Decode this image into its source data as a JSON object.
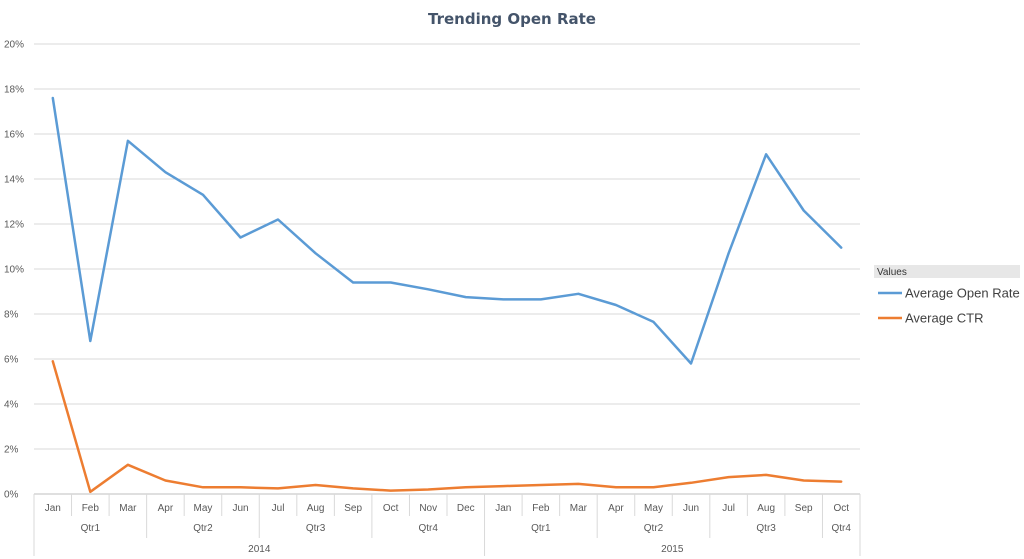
{
  "chart_data": {
    "type": "line",
    "title": "Trending Open Rate",
    "xlabel": "",
    "ylabel": "",
    "ylim": [
      0,
      20
    ],
    "yticks": [
      "0%",
      "2%",
      "4%",
      "6%",
      "8%",
      "10%",
      "12%",
      "14%",
      "16%",
      "18%",
      "20%"
    ],
    "grid": true,
    "legend_position": "right",
    "legend_header": "Values",
    "categories": [
      "Jan",
      "Feb",
      "Mar",
      "Apr",
      "May",
      "Jun",
      "Jul",
      "Aug",
      "Sep",
      "Oct",
      "Nov",
      "Dec",
      "Jan",
      "Feb",
      "Mar",
      "Apr",
      "May",
      "Jun",
      "Jul",
      "Aug",
      "Sep",
      "Oct"
    ],
    "quarters": [
      {
        "label": "Qtr1",
        "start": 0,
        "end": 2
      },
      {
        "label": "Qtr2",
        "start": 3,
        "end": 5
      },
      {
        "label": "Qtr3",
        "start": 6,
        "end": 8
      },
      {
        "label": "Qtr4",
        "start": 9,
        "end": 11
      },
      {
        "label": "Qtr1",
        "start": 12,
        "end": 14
      },
      {
        "label": "Qtr2",
        "start": 15,
        "end": 17
      },
      {
        "label": "Qtr3",
        "start": 18,
        "end": 20
      },
      {
        "label": "Qtr4",
        "start": 21,
        "end": 21
      }
    ],
    "years": [
      {
        "label": "2014",
        "start": 0,
        "end": 11
      },
      {
        "label": "2015",
        "start": 12,
        "end": 21
      }
    ],
    "series": [
      {
        "name": "Average Open Rate",
        "color": "#5b9bd5",
        "values": [
          17.6,
          6.8,
          15.7,
          14.3,
          13.3,
          11.4,
          12.2,
          10.7,
          9.4,
          9.4,
          9.1,
          8.75,
          8.65,
          8.65,
          8.9,
          8.4,
          7.65,
          5.8,
          10.7,
          15.1,
          12.6,
          10.95
        ]
      },
      {
        "name": "Average CTR",
        "color": "#ed7d31",
        "values": [
          5.9,
          0.1,
          1.3,
          0.6,
          0.3,
          0.3,
          0.25,
          0.4,
          0.25,
          0.15,
          0.2,
          0.3,
          0.35,
          0.4,
          0.45,
          0.3,
          0.3,
          0.5,
          0.75,
          0.85,
          0.6,
          0.55
        ]
      }
    ]
  }
}
